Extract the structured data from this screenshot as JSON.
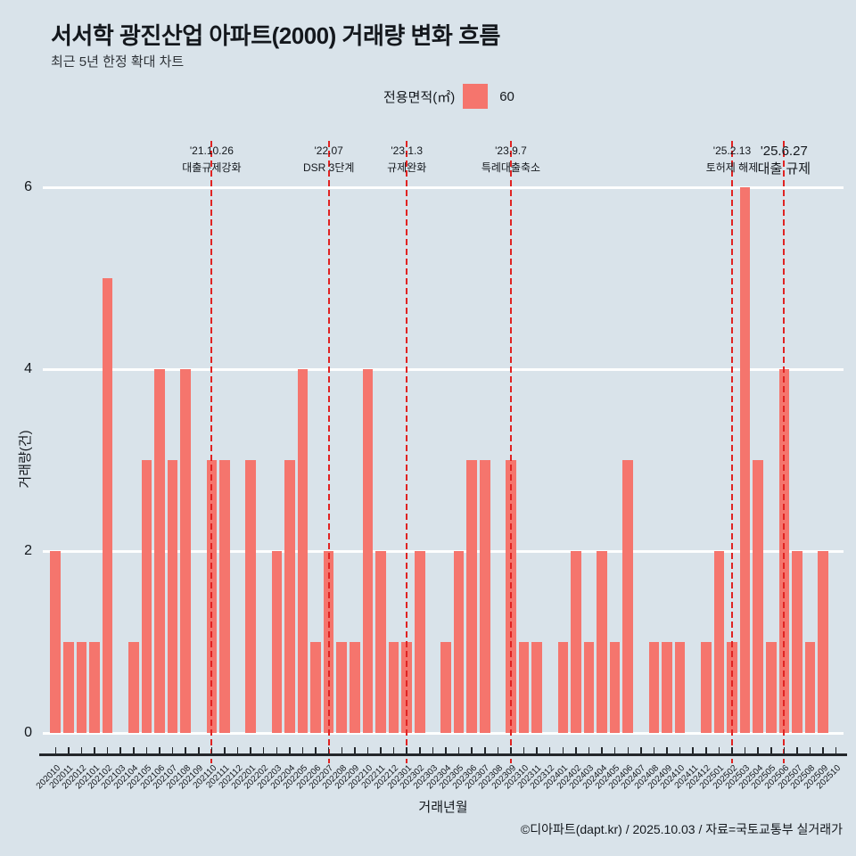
{
  "title": "서서학 광진산업 아파트(2000) 거래량 변화 흐름",
  "subtitle": "최근 5년 한정 확대 차트",
  "legend": {
    "label": "전용면적(㎡)",
    "value": "60"
  },
  "footer": "©디아파트(dapt.kr) / 2025.10.03 / 자료=국토교통부 실거래가",
  "colors": {
    "background": "#d9e3ea",
    "bar": "#f5756d",
    "event_line": "#e02322",
    "gridline": "#fdfefe",
    "axis": "#23272b",
    "text": "#14181d",
    "subtext": "#2e3338"
  },
  "chart_data": {
    "type": "bar",
    "title": "서서학 광진산업 아파트(2000) 거래량 변화 흐름",
    "subtitle": "최근 5년 한정 확대 차트",
    "xlabel": "거래년월",
    "ylabel": "거래량(건)",
    "ylim": [
      0,
      6
    ],
    "yticks": [
      0,
      2,
      4,
      6
    ],
    "grid": true,
    "legend_position": "top",
    "categories": [
      "202010",
      "202011",
      "202012",
      "202101",
      "202102",
      "202103",
      "202104",
      "202105",
      "202106",
      "202107",
      "202108",
      "202109",
      "202110",
      "202111",
      "202112",
      "202201",
      "202202",
      "202203",
      "202204",
      "202205",
      "202206",
      "202207",
      "202208",
      "202209",
      "202210",
      "202211",
      "202212",
      "202301",
      "202302",
      "202303",
      "202304",
      "202305",
      "202306",
      "202307",
      "202308",
      "202309",
      "202310",
      "202311",
      "202312",
      "202401",
      "202402",
      "202403",
      "202404",
      "202405",
      "202406",
      "202407",
      "202408",
      "202409",
      "202410",
      "202411",
      "202412",
      "202501",
      "202502",
      "202503",
      "202504",
      "202505",
      "202506",
      "202507",
      "202508",
      "202509",
      "202510"
    ],
    "series": [
      {
        "name": "60",
        "values": [
          2,
          1,
          1,
          1,
          5,
          0,
          1,
          3,
          4,
          3,
          4,
          0,
          3,
          3,
          0,
          3,
          0,
          2,
          3,
          4,
          1,
          2,
          1,
          1,
          4,
          2,
          1,
          1,
          2,
          0,
          1,
          2,
          3,
          3,
          0,
          3,
          1,
          1,
          0,
          1,
          2,
          1,
          2,
          1,
          3,
          0,
          1,
          1,
          1,
          0,
          1,
          2,
          1,
          6,
          3,
          1,
          4,
          2,
          1,
          2,
          0
        ]
      }
    ],
    "events": [
      {
        "month": "202110",
        "date": "'21.10.26",
        "label": "대출규제강화"
      },
      {
        "month": "202207",
        "date": "'22.07",
        "label": "DSR 3단계"
      },
      {
        "month": "202301",
        "date": "'23.1.3",
        "label": "규제완화"
      },
      {
        "month": "202309",
        "date": "'23.9.7",
        "label": "특례대출축소"
      },
      {
        "month": "202502",
        "date": "'25.2.13",
        "label": "토허제 해제"
      },
      {
        "month": "202506",
        "date": "'25.6.27",
        "label": "대출 규제"
      }
    ]
  }
}
